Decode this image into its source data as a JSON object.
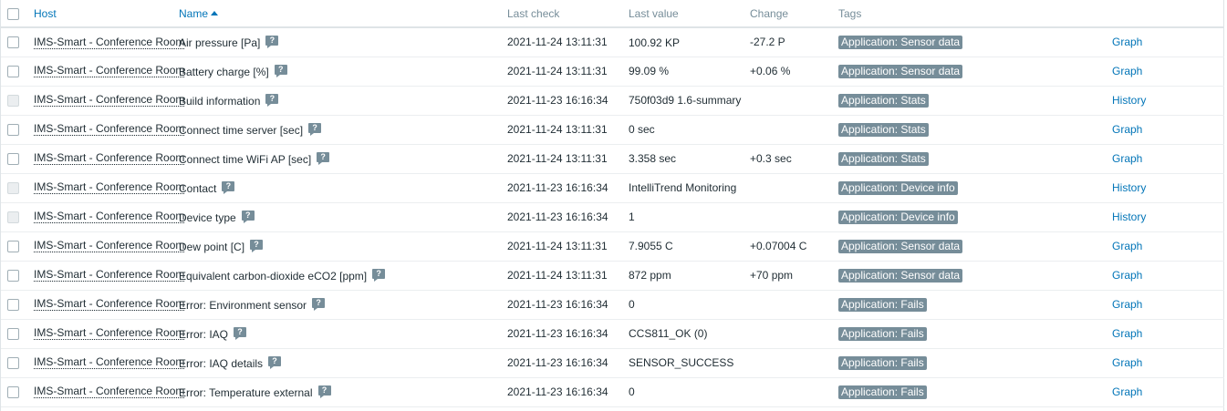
{
  "header": {
    "host": "Host",
    "name": "Name",
    "last_check": "Last check",
    "last_value": "Last value",
    "change": "Change",
    "tags": "Tags"
  },
  "colors": {
    "link": "#0275b8",
    "tag_bg": "#768d99",
    "header_text": "#768d99"
  },
  "rows": [
    {
      "host": "IMS-Smart - Conference Room",
      "name": "Air pressure [Pa]",
      "last_check": "2021-11-24 13:11:31",
      "last_value": "100.92 KP",
      "change": "-27.2 P",
      "tag": "Application: Sensor data",
      "action": "Graph",
      "checkbox_enabled": true
    },
    {
      "host": "IMS-Smart - Conference Room",
      "name": "Battery charge [%]",
      "last_check": "2021-11-24 13:11:31",
      "last_value": "99.09 %",
      "change": "+0.06 %",
      "tag": "Application: Sensor data",
      "action": "Graph",
      "checkbox_enabled": true
    },
    {
      "host": "IMS-Smart - Conference Room",
      "name": "Build information",
      "last_check": "2021-11-23 16:16:34",
      "last_value": "750f03d9 1.6-summary",
      "change": "",
      "tag": "Application: Stats",
      "action": "History",
      "checkbox_enabled": false
    },
    {
      "host": "IMS-Smart - Conference Room",
      "name": "Connect time server [sec]",
      "last_check": "2021-11-24 13:11:31",
      "last_value": "0 sec",
      "change": "",
      "tag": "Application: Stats",
      "action": "Graph",
      "checkbox_enabled": true
    },
    {
      "host": "IMS-Smart - Conference Room",
      "name": "Connect time WiFi AP [sec]",
      "last_check": "2021-11-24 13:11:31",
      "last_value": "3.358 sec",
      "change": "+0.3 sec",
      "tag": "Application: Stats",
      "action": "Graph",
      "checkbox_enabled": true
    },
    {
      "host": "IMS-Smart - Conference Room",
      "name": "Contact",
      "last_check": "2021-11-23 16:16:34",
      "last_value": "IntelliTrend Monitoring",
      "change": "",
      "tag": "Application: Device info",
      "action": "History",
      "checkbox_enabled": false
    },
    {
      "host": "IMS-Smart - Conference Room",
      "name": "Device type",
      "last_check": "2021-11-23 16:16:34",
      "last_value": "1",
      "change": "",
      "tag": "Application: Device info",
      "action": "History",
      "checkbox_enabled": false
    },
    {
      "host": "IMS-Smart - Conference Room",
      "name": "Dew point [C]",
      "last_check": "2021-11-24 13:11:31",
      "last_value": "7.9055 C",
      "change": "+0.07004 C",
      "tag": "Application: Sensor data",
      "action": "Graph",
      "checkbox_enabled": true
    },
    {
      "host": "IMS-Smart - Conference Room",
      "name": "Equivalent carbon-dioxide eCO2 [ppm]",
      "last_check": "2021-11-24 13:11:31",
      "last_value": "872 ppm",
      "change": "+70 ppm",
      "tag": "Application: Sensor data",
      "action": "Graph",
      "checkbox_enabled": true
    },
    {
      "host": "IMS-Smart - Conference Room",
      "name": "Error: Environment sensor",
      "last_check": "2021-11-23 16:16:34",
      "last_value": "0",
      "change": "",
      "tag": "Application: Fails",
      "action": "Graph",
      "checkbox_enabled": true
    },
    {
      "host": "IMS-Smart - Conference Room",
      "name": "Error: IAQ",
      "last_check": "2021-11-23 16:16:34",
      "last_value": "CCS811_OK (0)",
      "change": "",
      "tag": "Application: Fails",
      "action": "Graph",
      "checkbox_enabled": true
    },
    {
      "host": "IMS-Smart - Conference Room",
      "name": "Error: IAQ details",
      "last_check": "2021-11-23 16:16:34",
      "last_value": "SENSOR_SUCCESS",
      "change": "",
      "tag": "Application: Fails",
      "action": "Graph",
      "checkbox_enabled": true
    },
    {
      "host": "IMS-Smart - Conference Room",
      "name": "Error: Temperature external",
      "last_check": "2021-11-23 16:16:34",
      "last_value": "0",
      "change": "",
      "tag": "Application: Fails",
      "action": "Graph",
      "checkbox_enabled": true
    }
  ]
}
